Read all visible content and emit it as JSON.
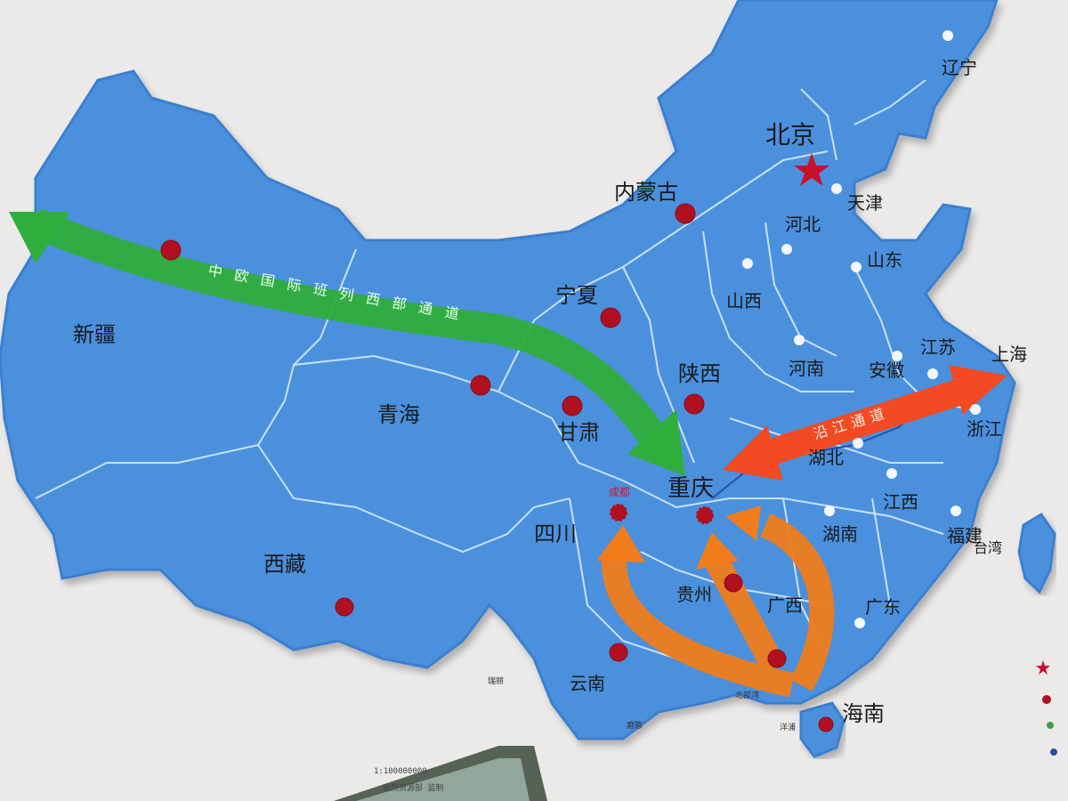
{
  "provinces": {
    "xinjiang": "新疆",
    "xizang": "西藏",
    "qinghai": "青海",
    "gansu": "甘肃",
    "neimenggu": "内蒙古",
    "ningxia": "宁夏",
    "shaanxi": "陕西",
    "shanxi": "山西",
    "beijing": "北京",
    "tianjin": "天津",
    "hebei": "河北",
    "liaoning": "辽宁",
    "shandong": "山东",
    "henan": "河南",
    "jiangsu": "江苏",
    "anhui": "安徽",
    "shanghai": "上海",
    "zhejiang": "浙江",
    "hubei": "湖北",
    "sichuan": "四川",
    "chongqing": "重庆",
    "guizhou": "贵州",
    "yunnan": "云南",
    "guangxi": "广西",
    "hunan": "湖南",
    "jiangxi": "江西",
    "fujian": "福建",
    "guangdong": "广东",
    "hainan": "海南",
    "taiwan": "台湾"
  },
  "cities": {
    "chengdu": "成都"
  },
  "corridors": {
    "west": "中欧国际班列西部通道",
    "river": "沿江通道"
  },
  "small_labels": {
    "ruili": "瑞丽",
    "mohan": "磨憨",
    "beibuwan": "北部湾",
    "yangpu": "洋浦"
  },
  "scale": {
    "ratio": "1:100000000",
    "agency": "自然资源部 监制"
  },
  "colors": {
    "map_fill": "#4a8fdc",
    "map_edge": "#2f6fbf",
    "green_arrow": "#2fae3c",
    "orange_arrow": "#f07c1c",
    "red_arrow": "#f24a23",
    "capital_star": "#c8102e",
    "city_dot": "#b01020"
  }
}
